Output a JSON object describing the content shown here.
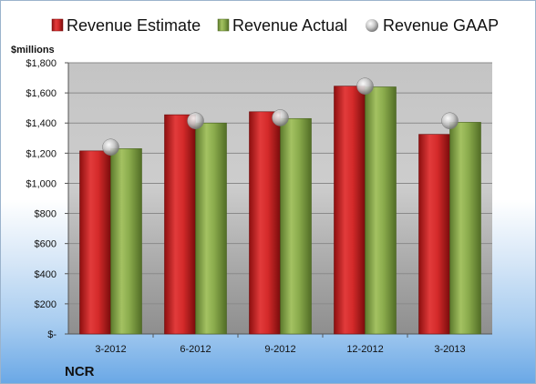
{
  "ticker": "NCR",
  "chart_data": {
    "type": "bar",
    "ylabel": "$millions",
    "categories": [
      "3-2012",
      "6-2012",
      "9-2012",
      "12-2012",
      "3-2013"
    ],
    "ylim": [
      0,
      1800
    ],
    "ytick_values": [
      0,
      200,
      400,
      600,
      800,
      1000,
      1200,
      1400,
      1600,
      1800
    ],
    "ytick_labels": [
      "$-",
      "$200",
      "$400",
      "$600",
      "$800",
      "$1,000",
      "$1,200",
      "$1,400",
      "$1,600",
      "$1,800"
    ],
    "grid": true,
    "legend_position": "top",
    "series": [
      {
        "name": "Revenue Estimate",
        "kind": "bar",
        "color": "#d42a2a",
        "values": [
          1215,
          1455,
          1475,
          1645,
          1325
        ]
      },
      {
        "name": "Revenue Actual",
        "kind": "bar",
        "color": "#8aab4c",
        "values": [
          1230,
          1400,
          1430,
          1640,
          1405
        ]
      },
      {
        "name": "Revenue GAAP",
        "kind": "marker",
        "color": "#c0c0c0",
        "values": [
          1240,
          1415,
          1435,
          1645,
          1415
        ]
      }
    ]
  }
}
